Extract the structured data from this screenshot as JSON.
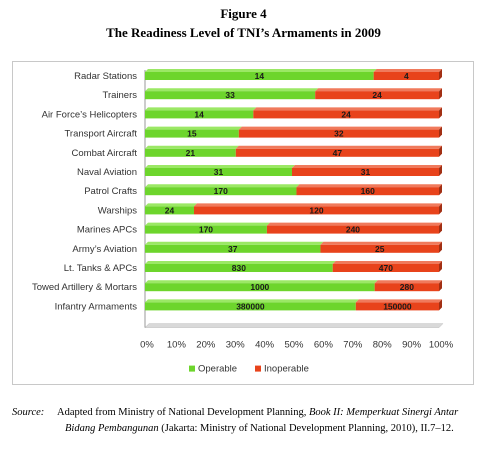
{
  "figure": {
    "label": "Figure 4",
    "title": "The Readiness Level of TNI’s Armaments in 2009"
  },
  "chart_data": {
    "type": "bar",
    "orientation": "horizontal",
    "stacked": "percent",
    "categories": [
      "Radar Stations",
      "Trainers",
      "Air Force’s Helicopters",
      "Transport Aircraft",
      "Combat Aircraft",
      "Naval Aviation",
      "Patrol Crafts",
      "Warships",
      "Marines APCs",
      "Army’s Aviation",
      "Lt. Tanks & APCs",
      "Towed Artillery & Mortars",
      "Infantry Armaments"
    ],
    "series": [
      {
        "name": "Operable",
        "values": [
          14,
          33,
          14,
          15,
          21,
          31,
          170,
          24,
          170,
          37,
          830,
          1000,
          380000
        ]
      },
      {
        "name": "Inoperable",
        "values": [
          4,
          24,
          24,
          32,
          47,
          31,
          160,
          120,
          240,
          25,
          470,
          280,
          150000
        ]
      }
    ],
    "x_ticks": [
      "0%",
      "10%",
      "20%",
      "30%",
      "40%",
      "50%",
      "60%",
      "70%",
      "80%",
      "90%",
      "100%"
    ],
    "xlim": [
      0,
      100
    ],
    "legend_position": "bottom",
    "grid": false,
    "colors": {
      "Operable": "#6dd52c",
      "Inoperable": "#e8431b"
    }
  },
  "source": {
    "label": "Source:",
    "text_before": "Adapted from Ministry of National Development Planning, ",
    "book_title": "Book II: Memperkuat Sinergi Antar Bidang Pembangunan",
    "text_after": " (Jakarta: Ministry of National Development Planning, 2010), II.7–12."
  }
}
